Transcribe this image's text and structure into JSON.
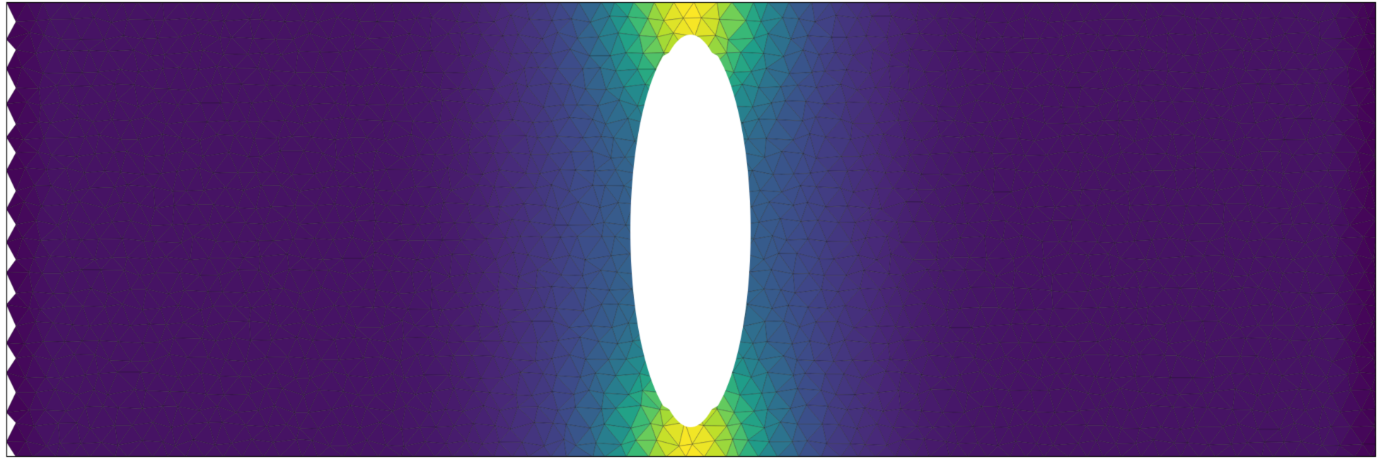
{
  "scene": {
    "background": "#ffffff",
    "colormap": "viridis",
    "colormap_stops": [
      "#440154",
      "#482878",
      "#3e4989",
      "#31688e",
      "#26828e",
      "#1f9e89",
      "#35b779",
      "#6ece58",
      "#b5de2b",
      "#fde725"
    ],
    "mesh_edge_color": "#1a1a1a",
    "hole_fill": "#ffffff",
    "outline_color": "#000000"
  }
}
